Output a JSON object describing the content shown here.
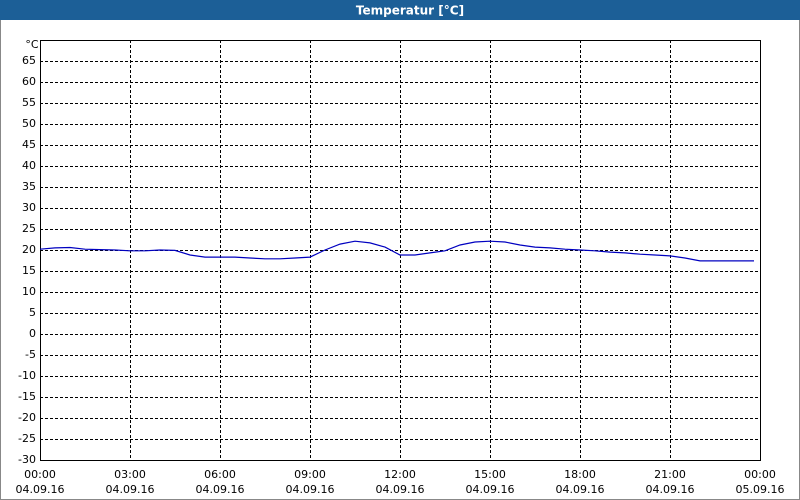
{
  "chart_data": {
    "type": "line",
    "title": "Temperatur [°C]",
    "y_label": "°C",
    "x": [
      0,
      0.5,
      1,
      1.5,
      2,
      2.5,
      3,
      3.5,
      4,
      4.5,
      5,
      5.5,
      6,
      6.5,
      7,
      7.5,
      8,
      8.5,
      9,
      9.5,
      10,
      10.5,
      11,
      11.5,
      12,
      12.5,
      13,
      13.5,
      14,
      14.5,
      15,
      15.5,
      16,
      16.5,
      17,
      17.5,
      18,
      18.5,
      19,
      19.5,
      20,
      20.5,
      21,
      21.5,
      22,
      22.5,
      23,
      23.5,
      23.8
    ],
    "values": [
      20.2,
      20.5,
      20.6,
      20.2,
      20.1,
      20,
      19.8,
      19.8,
      20,
      19.9,
      18.8,
      18.3,
      18.3,
      18.3,
      18.1,
      17.9,
      17.9,
      18.1,
      18.3,
      20,
      21.4,
      22.1,
      21.7,
      20.7,
      18.8,
      18.8,
      19.3,
      19.8,
      21.2,
      21.9,
      22.1,
      21.9,
      21.2,
      20.7,
      20.5,
      20.2,
      20,
      19.8,
      19.5,
      19.3,
      19,
      18.8,
      18.6,
      18.1,
      17.4,
      17.4,
      17.4,
      17.4,
      17.4
    ],
    "color": "#0000c0",
    "xlim": [
      0,
      24
    ],
    "xticks": [
      {
        "value": 0,
        "label": [
          "00:00",
          "04.09.16"
        ]
      },
      {
        "value": 3,
        "label": [
          "03:00",
          "04.09.16"
        ]
      },
      {
        "value": 6,
        "label": [
          "06:00",
          "04.09.16"
        ]
      },
      {
        "value": 9,
        "label": [
          "09:00",
          "04.09.16"
        ]
      },
      {
        "value": 12,
        "label": [
          "12:00",
          "04.09.16"
        ]
      },
      {
        "value": 15,
        "label": [
          "15:00",
          "04.09.16"
        ]
      },
      {
        "value": 18,
        "label": [
          "18:00",
          "04.09.16"
        ]
      },
      {
        "value": 21,
        "label": [
          "21:00",
          "04.09.16"
        ]
      },
      {
        "value": 24,
        "label": [
          "00:00",
          "05.09.16"
        ]
      }
    ],
    "ylim": [
      -30,
      70
    ],
    "yticks": [
      -30,
      -25,
      -20,
      -15,
      -10,
      -5,
      0,
      5,
      10,
      15,
      20,
      25,
      30,
      35,
      40,
      45,
      50,
      55,
      60,
      65
    ],
    "grid": true
  }
}
